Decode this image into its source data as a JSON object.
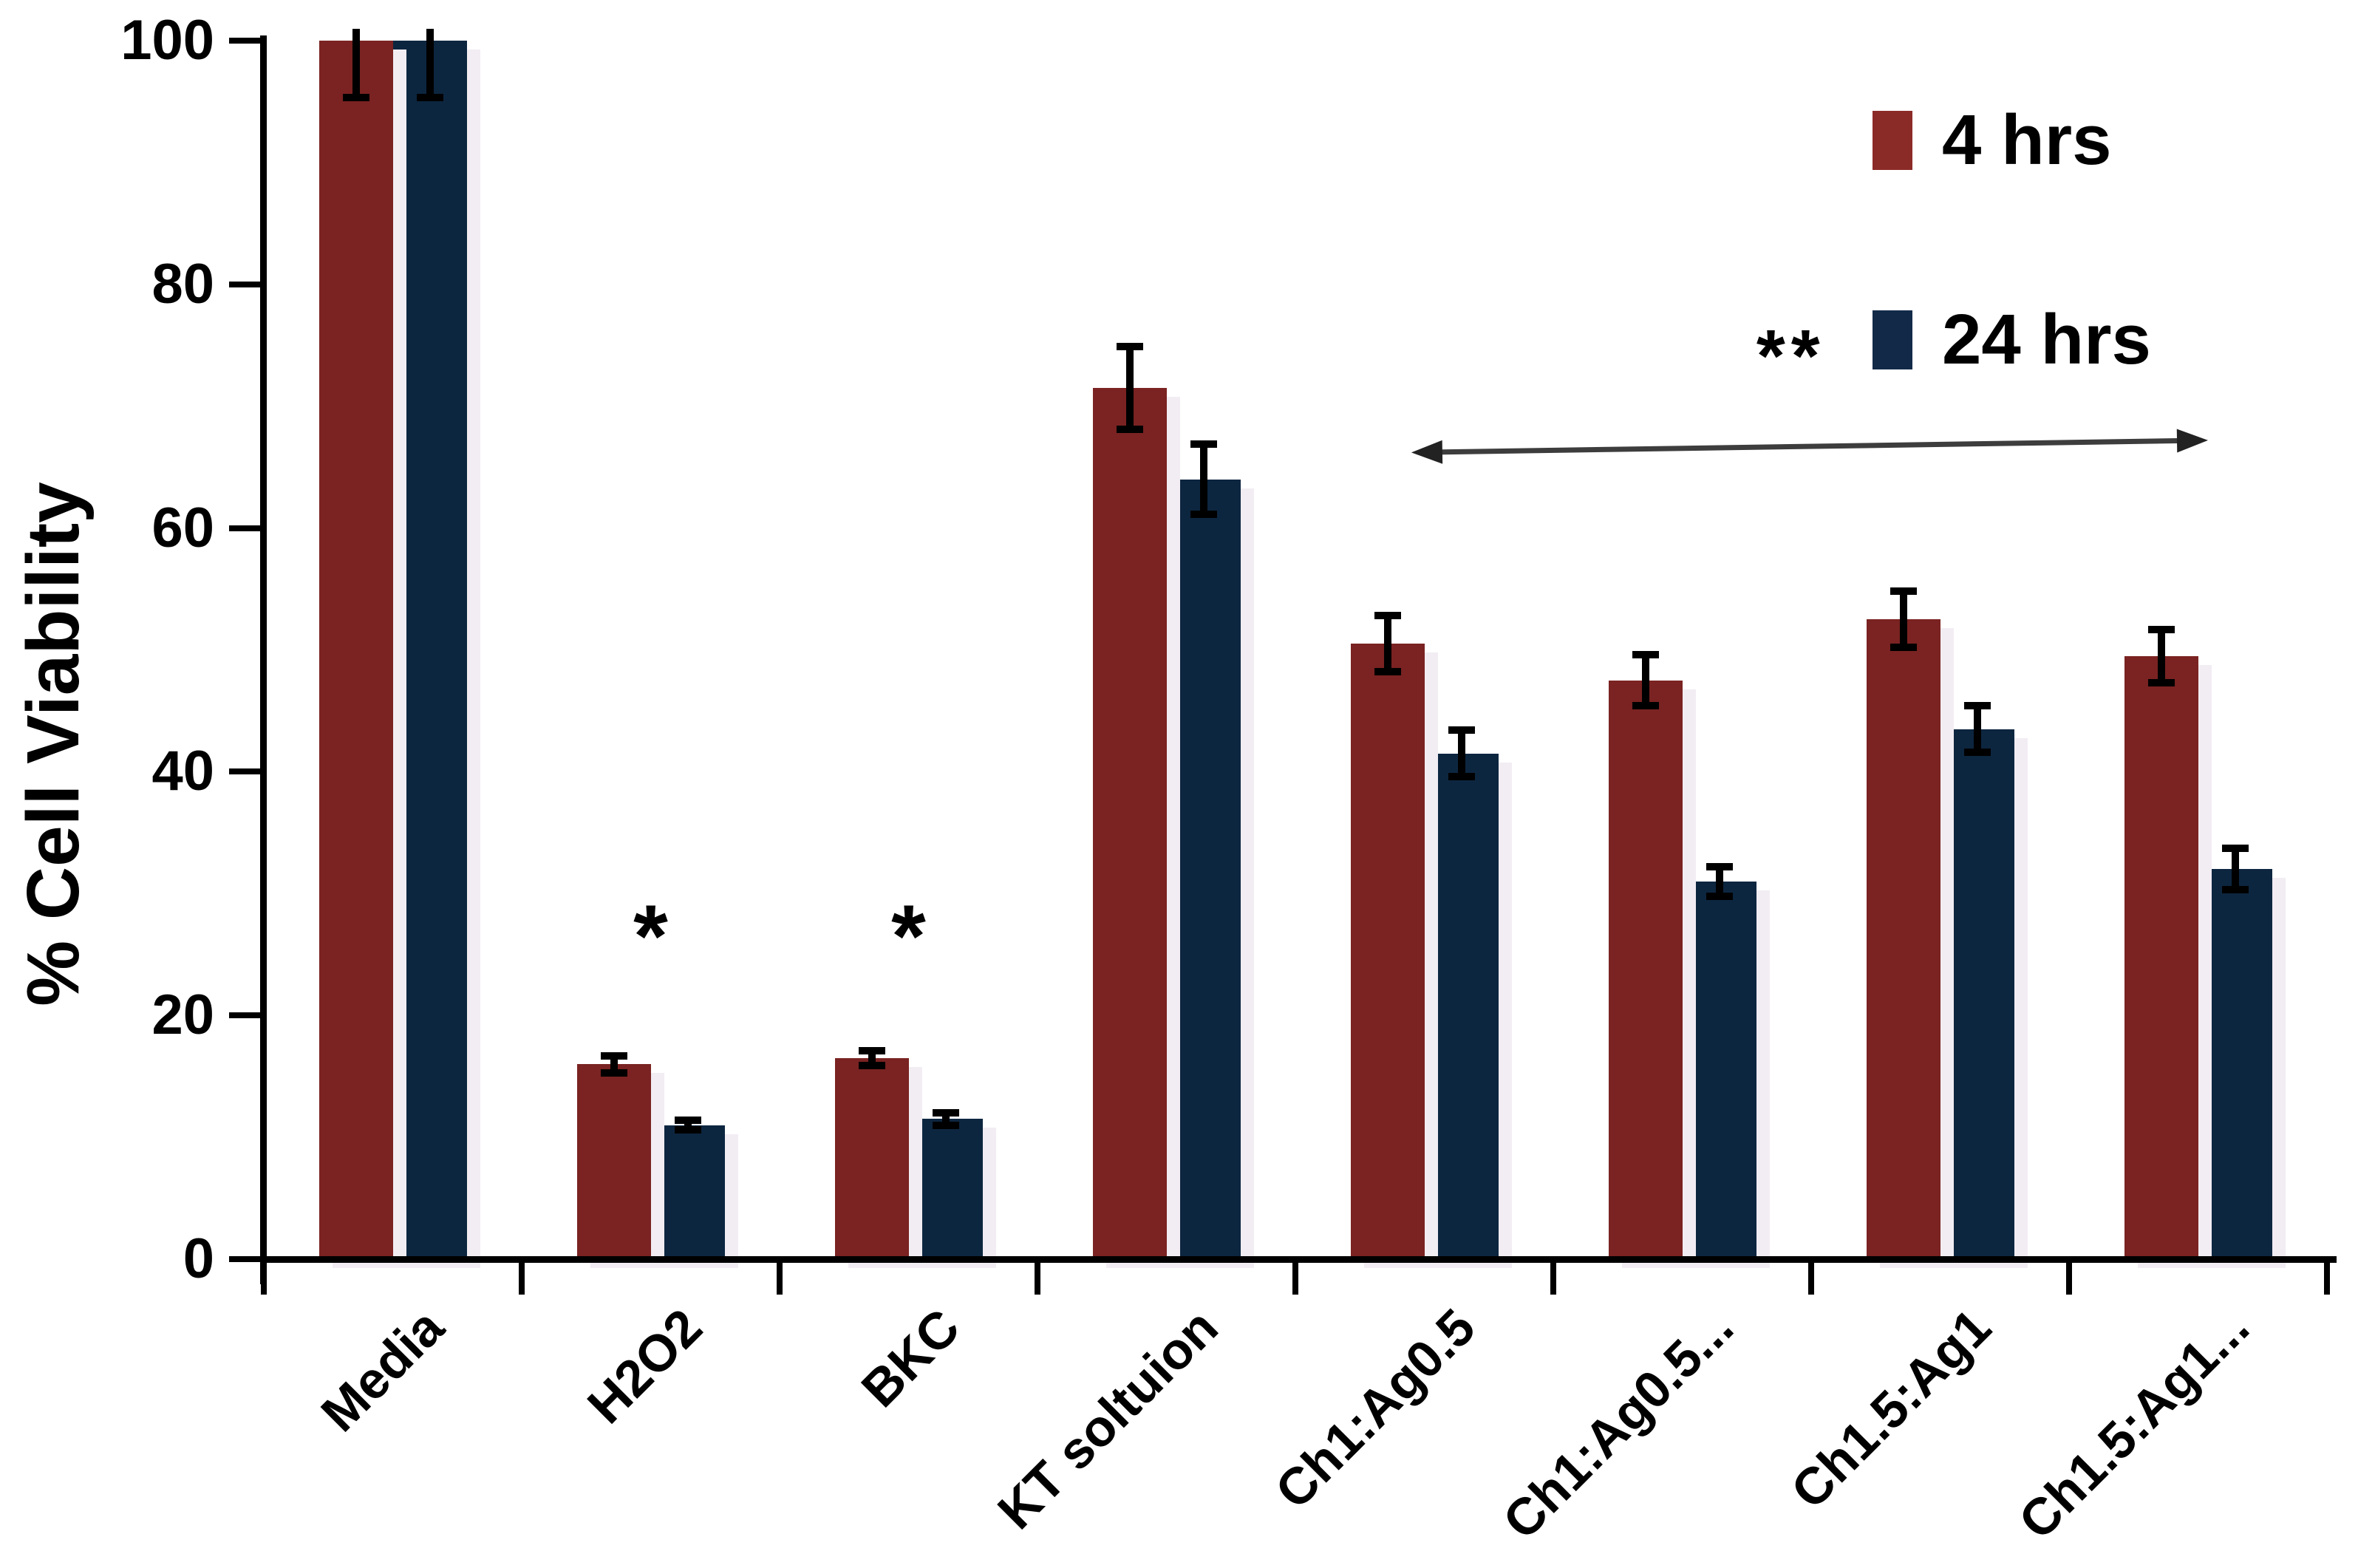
{
  "chart_data": {
    "type": "bar",
    "title": "",
    "xlabel": "",
    "ylabel": "% Cell Viability",
    "ylim": [
      0,
      100
    ],
    "yticks": [
      0,
      20,
      40,
      60,
      80,
      100
    ],
    "grid": false,
    "legend_position": "top-right",
    "categories": [
      "Media",
      "H2O2",
      "BKC",
      "KT soltuion",
      "Ch1:Ag0.5",
      "Ch1:Ag0.5...",
      "Ch1.5:Ag1",
      "Ch1.5:Ag1..."
    ],
    "series": [
      {
        "name": "4 hrs",
        "color": "#7a2322",
        "legend_color": "#8b2b28",
        "values": [
          100,
          16,
          16.5,
          71.5,
          50.5,
          47.5,
          52.5,
          49.5
        ],
        "errors": [
          5,
          1,
          0.9,
          3.7,
          2.6,
          2.4,
          2.6,
          2.5
        ]
      },
      {
        "name": "24 hrs",
        "color": "#0d2640",
        "legend_color": "#122a48",
        "values": [
          100,
          11,
          11.5,
          64,
          41.5,
          31,
          43.5,
          32
        ],
        "errors": [
          5,
          0.7,
          0.8,
          3.2,
          2.2,
          1.5,
          2.2,
          2
        ]
      }
    ],
    "annotations": {
      "single_asterisks": [
        {
          "label": "*",
          "category_index": 1,
          "y_value": 25
        },
        {
          "label": "*",
          "category_index": 2,
          "y_value": 25
        }
      ],
      "significance_arrow": {
        "label": "**",
        "style": "double-headed",
        "from_category_index": 4,
        "to_category_index": 7,
        "from_x_fraction": 0.556,
        "to_x_fraction": 0.942,
        "from_y_value": 66.2,
        "to_y_value": 67.2,
        "label_x_fraction": 0.74,
        "label_y_value": 73.5
      }
    },
    "axis_color": "#000000",
    "error_bar_color": "#000000",
    "bar_shadow_color": "#f2edf3",
    "arrow_color": "#3d3d3d"
  }
}
